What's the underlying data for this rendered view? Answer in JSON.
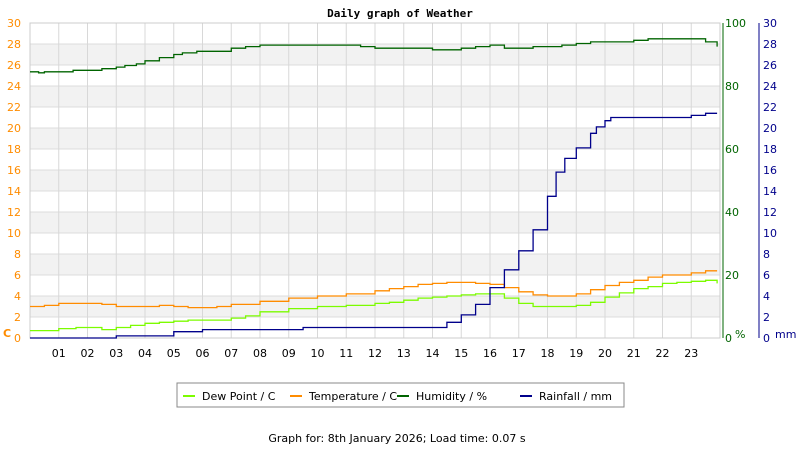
{
  "chart_data": {
    "type": "line",
    "title": "Daily graph of Weather",
    "footer": "Graph for: 8th January 2026; Load time: 0.07 s",
    "x": {
      "ticks": [
        "01",
        "02",
        "03",
        "04",
        "05",
        "06",
        "07",
        "08",
        "09",
        "10",
        "11",
        "12",
        "13",
        "14",
        "15",
        "16",
        "17",
        "18",
        "19",
        "20",
        "21",
        "22",
        "23"
      ],
      "range": [
        0,
        24
      ],
      "unit": "hour"
    },
    "y_left": {
      "unit": "C",
      "range": [
        0,
        30
      ],
      "ticks": [
        "0",
        "2",
        "4",
        "6",
        "8",
        "10",
        "12",
        "14",
        "16",
        "18",
        "20",
        "22",
        "24",
        "26",
        "28",
        "30"
      ],
      "color": "#ff8c00"
    },
    "y_right_humidity": {
      "unit": "%",
      "range": [
        0,
        100
      ],
      "ticks": [
        "0",
        "20",
        "40",
        "60",
        "80",
        "100"
      ],
      "color": "#006400"
    },
    "y_right_rain": {
      "unit": "mm",
      "range": [
        0,
        30
      ],
      "ticks": [
        "0",
        "2",
        "4",
        "6",
        "8",
        "10",
        "12",
        "14",
        "16",
        "18",
        "20",
        "22",
        "24",
        "26",
        "28",
        "30"
      ],
      "color": "#00008b"
    },
    "grid": true,
    "legend": {
      "placement": "bottom"
    },
    "series": [
      {
        "name": "Dew Point / C",
        "color": "#7cfc00",
        "axis": "left",
        "x": [
          0,
          1,
          1.6,
          2,
          2.5,
          3,
          3.5,
          4,
          4.5,
          5,
          5.5,
          6,
          6.5,
          7,
          7.5,
          8,
          9,
          10,
          11,
          12,
          12.5,
          13,
          13.5,
          14,
          14.5,
          15,
          15.5,
          16,
          16.5,
          17,
          17.5,
          18,
          18.5,
          19,
          19.5,
          20,
          20.5,
          21,
          21.5,
          22,
          22.5,
          23,
          23.5,
          23.9
        ],
        "y": [
          0.7,
          0.9,
          1.0,
          1.0,
          0.8,
          1.0,
          1.2,
          1.4,
          1.5,
          1.6,
          1.7,
          1.7,
          1.7,
          1.9,
          2.1,
          2.5,
          2.8,
          3.0,
          3.1,
          3.3,
          3.4,
          3.6,
          3.8,
          3.9,
          4.0,
          4.1,
          4.2,
          4.2,
          3.8,
          3.3,
          3.0,
          3.0,
          3.0,
          3.1,
          3.4,
          3.9,
          4.3,
          4.7,
          4.9,
          5.2,
          5.3,
          5.4,
          5.5,
          5.2
        ]
      },
      {
        "name": "Temperature / C",
        "color": "#ff8c00",
        "axis": "left",
        "x": [
          0,
          0.5,
          1,
          1.5,
          2,
          2.5,
          3,
          3.5,
          4,
          4.5,
          5,
          5.5,
          6,
          6.5,
          7,
          8,
          9,
          10,
          11,
          12,
          12.5,
          13,
          13.5,
          14,
          14.5,
          15,
          15.5,
          16,
          16.5,
          17,
          17.5,
          18,
          18.5,
          19,
          19.5,
          20,
          20.5,
          21,
          21.5,
          22,
          22.5,
          23,
          23.5,
          23.9
        ],
        "y": [
          3.0,
          3.1,
          3.3,
          3.3,
          3.3,
          3.2,
          3.0,
          3.0,
          3.0,
          3.1,
          3.0,
          2.9,
          2.9,
          3.0,
          3.2,
          3.5,
          3.8,
          4.0,
          4.2,
          4.5,
          4.7,
          4.9,
          5.1,
          5.2,
          5.3,
          5.3,
          5.2,
          5.1,
          4.8,
          4.4,
          4.1,
          4.0,
          4.0,
          4.2,
          4.6,
          5.0,
          5.3,
          5.5,
          5.8,
          6.0,
          6.0,
          6.2,
          6.4,
          6.4
        ]
      },
      {
        "name": "Humidity / %",
        "color": "#006400",
        "axis": "right_humidity",
        "x": [
          0,
          0.3,
          0.5,
          1,
          1.5,
          2,
          2.5,
          3,
          3.3,
          3.7,
          4,
          4.5,
          5,
          5.3,
          5.8,
          6.2,
          7,
          7.5,
          8,
          10,
          11,
          11.5,
          12,
          13,
          13.5,
          14,
          14.5,
          15,
          15.5,
          16,
          16.5,
          17,
          17.5,
          18,
          18.5,
          19,
          19.5,
          20,
          20.5,
          21,
          21.5,
          22,
          22.5,
          23,
          23.5,
          23.9
        ],
        "y": [
          84.5,
          84.2,
          84.5,
          84.5,
          85,
          85,
          85.5,
          86,
          86.5,
          87,
          88,
          89,
          90,
          90.5,
          91,
          91,
          92,
          92.5,
          93,
          93,
          93,
          92.5,
          92,
          92,
          92,
          91.5,
          91.5,
          92,
          92.5,
          93,
          92,
          92,
          92.5,
          92.5,
          93,
          93.5,
          94,
          94,
          94,
          94.5,
          95,
          95,
          95,
          95,
          94,
          92.5
        ]
      },
      {
        "name": "Rainfall / mm",
        "color": "#00008b",
        "axis": "right_rain",
        "x": [
          0,
          2.9,
          3,
          4.9,
          5,
          5.9,
          6,
          9.4,
          9.5,
          14.1,
          14.5,
          15,
          15.5,
          16,
          16.5,
          17,
          17.5,
          18,
          18.3,
          18.6,
          19,
          19.5,
          19.7,
          20,
          20.2,
          21,
          21.5,
          22,
          22.5,
          23,
          23.5,
          23.9
        ],
        "y": [
          0,
          0,
          0.2,
          0.2,
          0.6,
          0.6,
          0.8,
          0.8,
          1.0,
          1.0,
          1.5,
          2.2,
          3.2,
          4.8,
          6.5,
          8.3,
          10.3,
          13.5,
          15.8,
          17.1,
          18.1,
          19.5,
          20.1,
          20.7,
          21.0,
          21.0,
          21.0,
          21.0,
          21.0,
          21.2,
          21.4,
          21.4
        ]
      }
    ]
  }
}
